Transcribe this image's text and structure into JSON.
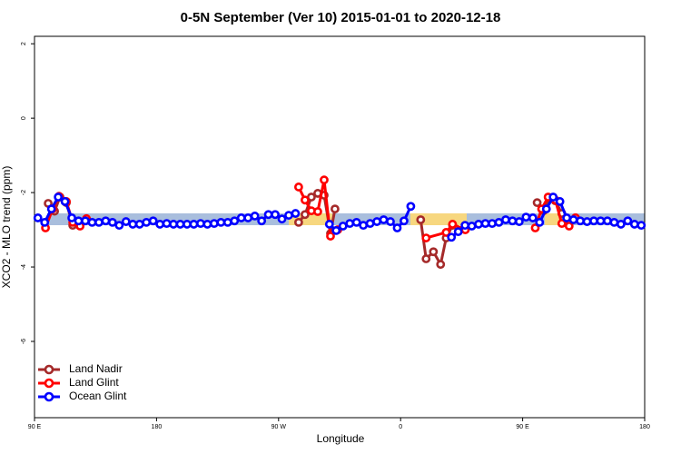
{
  "chart_data": {
    "type": "line",
    "title": "0-5N September (Ver 10)   2015-01-01 to 2020-12-18",
    "x_label": "Longitude",
    "y_label": "XCO2 - MLO trend (ppm)",
    "xlim": [
      90,
      540
    ],
    "ylim": [
      -8.05,
      2.2
    ],
    "xticks": [
      {
        "value": 90,
        "label": "90 E"
      },
      {
        "value": 180,
        "label": "180"
      },
      {
        "value": 270,
        "label": "90 W"
      },
      {
        "value": 360,
        "label": "0"
      },
      {
        "value": 450,
        "label": "90 E"
      },
      {
        "value": 540,
        "label": "180"
      }
    ],
    "yticks": [
      2,
      0,
      -2,
      -4,
      -6
    ],
    "legend": "bottom-left",
    "series": [
      {
        "name": "Land Nadir",
        "color": "#a52a2a",
        "x": [
          100.1,
          104.8,
          108.8,
          113.5,
          118.2,
          123.6,
          200,
          284.8,
          289.5,
          294.2,
          298.9,
          303.6,
          308.3,
          311.6,
          340,
          374.8,
          378.8,
          384.2,
          389.5,
          393.6,
          398.3,
          430,
          460.7,
          465.4,
          469.4,
          474.1,
          478.9,
          484.3,
          489
        ],
        "values": [
          -2.29,
          -2.5,
          -2.12,
          -2.27,
          -2.88,
          -2.85,
          null,
          -2.8,
          -2.59,
          -2.12,
          -2.02,
          -2.07,
          -3.1,
          -2.44,
          null,
          -2.73,
          -3.78,
          -3.59,
          -3.93,
          -3.22,
          -2.88,
          null,
          -2.27,
          -2.49,
          -2.15,
          -2.22,
          -2.56,
          -2.8,
          -2.68
        ]
      },
      {
        "name": "Land Glint",
        "color": "#ff0000",
        "x": [
          98.1,
          103.4,
          108.1,
          113.5,
          118.2,
          123.6,
          128.3,
          200,
          284.8,
          289.5,
          294.2,
          298.9,
          303.6,
          308.3,
          313.6,
          340,
          378.8,
          393.6,
          398.3,
          407.7,
          430,
          459.3,
          464,
          468.8,
          474.1,
          478.9,
          484.3,
          489
        ],
        "values": [
          -2.95,
          -2.44,
          -2.1,
          -2.24,
          -2.8,
          -2.9,
          -2.7,
          null,
          -1.85,
          -2.2,
          -2.49,
          -2.51,
          -1.66,
          -3.17,
          -3.0,
          null,
          -3.22,
          -3.07,
          -2.85,
          -3.0,
          null,
          -2.95,
          -2.44,
          -2.12,
          -2.2,
          -2.83,
          -2.9,
          -2.68
        ]
      },
      {
        "name": "Ocean Glint",
        "color": "#0000ff",
        "x": [
          92.5,
          97.5,
          102.5,
          107.5,
          112.5,
          117.5,
          122.5,
          127.5,
          132.5,
          137.5,
          142.5,
          147.5,
          152.5,
          157.5,
          162.5,
          167.5,
          172.5,
          177.5,
          182.5,
          187.5,
          192.5,
          197.5,
          202.5,
          207.5,
          212.5,
          217.5,
          222.5,
          227.5,
          232.5,
          237.5,
          242.5,
          247.5,
          252.5,
          257.5,
          262.5,
          267.5,
          272.5,
          277.5,
          282.5,
          287.5,
          292.5,
          297.5,
          302.5,
          307.5,
          312.5,
          317.5,
          322.5,
          327.5,
          332.5,
          337.5,
          342.5,
          347.5,
          352.5,
          357.5,
          362.5,
          367.5,
          372.5,
          377.5,
          382.5,
          387.5,
          392.5,
          397.5,
          402.5,
          407.5,
          412.5,
          417.5,
          422.5,
          427.5,
          432.5,
          437.5,
          442.5,
          447.5,
          452.5,
          457.5,
          462.5,
          467.5,
          472.5,
          477.5,
          482.5,
          487.5,
          492.5,
          497.5,
          502.5,
          507.5,
          512.5,
          517.5,
          522.5,
          527.5,
          532.5,
          537.5
        ],
        "values": [
          -2.68,
          -2.8,
          -2.44,
          -2.12,
          -2.24,
          -2.68,
          -2.76,
          -2.76,
          -2.8,
          -2.8,
          -2.76,
          -2.8,
          -2.88,
          -2.78,
          -2.85,
          -2.85,
          -2.8,
          -2.76,
          -2.85,
          -2.83,
          -2.85,
          -2.85,
          -2.85,
          -2.85,
          -2.83,
          -2.85,
          -2.83,
          -2.8,
          -2.8,
          -2.76,
          -2.68,
          -2.68,
          -2.63,
          -2.76,
          -2.59,
          -2.59,
          -2.71,
          -2.61,
          -2.56,
          null,
          null,
          null,
          null,
          -2.85,
          -3.02,
          -2.9,
          -2.83,
          -2.8,
          -2.88,
          -2.83,
          -2.78,
          -2.73,
          -2.78,
          -2.95,
          -2.76,
          -2.37,
          null,
          null,
          null,
          null,
          null,
          -3.2,
          -3.05,
          -2.88,
          -2.9,
          -2.85,
          -2.83,
          -2.83,
          -2.8,
          -2.73,
          -2.76,
          -2.78,
          -2.66,
          -2.68,
          -2.8,
          -2.44,
          -2.12,
          -2.24,
          -2.68,
          -2.73,
          -2.76,
          -2.78,
          -2.76,
          -2.76,
          -2.76,
          -2.8,
          -2.85,
          -2.76,
          -2.85,
          -2.88
        ]
      }
    ]
  }
}
